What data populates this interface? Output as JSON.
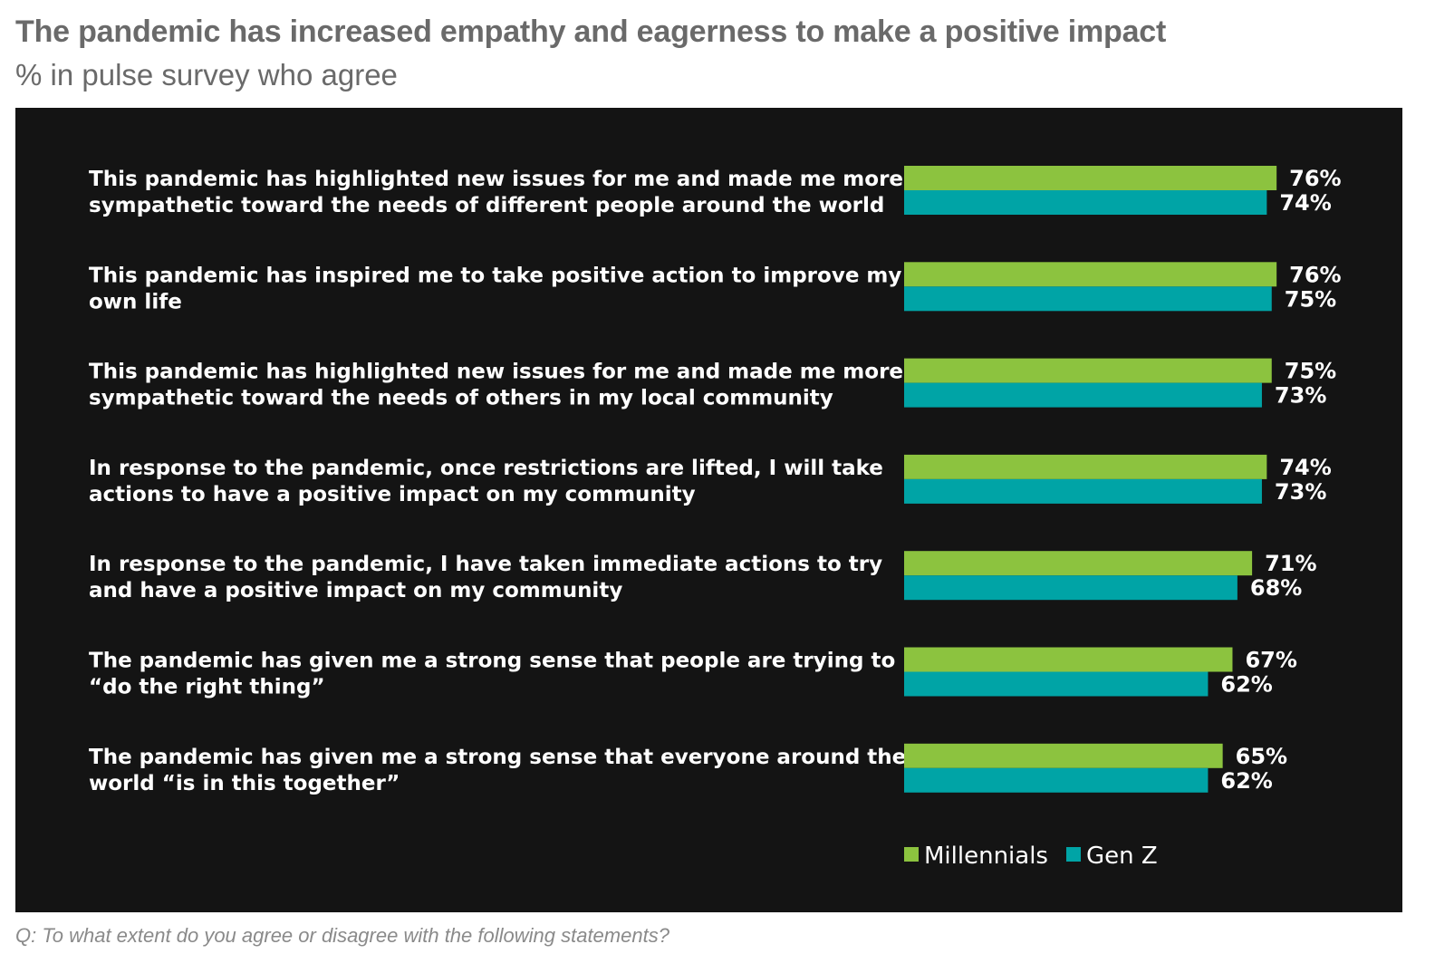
{
  "header": {
    "title": "The pandemic has increased empathy and eagerness to make a positive impact",
    "subtitle": "% in pulse survey who agree"
  },
  "footnote": "Q: To what extent do you agree or disagree with the following statements?",
  "colors": {
    "millennials": "#8cc33f",
    "genz": "#00a4a6",
    "background": "#141414"
  },
  "chart_data": {
    "type": "bar",
    "orientation": "horizontal",
    "value_suffix": "%",
    "categories": [
      [
        "This pandemic has highlighted new issues for me and made me more",
        "sympathetic toward the needs of different people around the world"
      ],
      [
        "This pandemic has inspired me to take positive action to improve my",
        "own life"
      ],
      [
        "This pandemic has highlighted new issues for me and made me more",
        "sympathetic toward the needs of others in my local community"
      ],
      [
        "In response to the pandemic, once restrictions are lifted, I will take",
        "actions to have a positive impact on my community"
      ],
      [
        "In response to the pandemic, I have taken immediate actions to try",
        "and have a positive impact on my community"
      ],
      [
        "The pandemic has given me a strong sense that people are trying to",
        "“do the right thing”"
      ],
      [
        "The pandemic has given me a strong sense that everyone around the",
        "world “is in this together”"
      ]
    ],
    "series": [
      {
        "name": "Millennials",
        "color": "#8cc33f",
        "values": [
          76,
          76,
          75,
          74,
          71,
          67,
          65
        ]
      },
      {
        "name": "Gen Z",
        "color": "#00a4a6",
        "values": [
          74,
          75,
          73,
          73,
          68,
          62,
          62
        ]
      }
    ],
    "legend_position": "bottom",
    "grid": false
  }
}
